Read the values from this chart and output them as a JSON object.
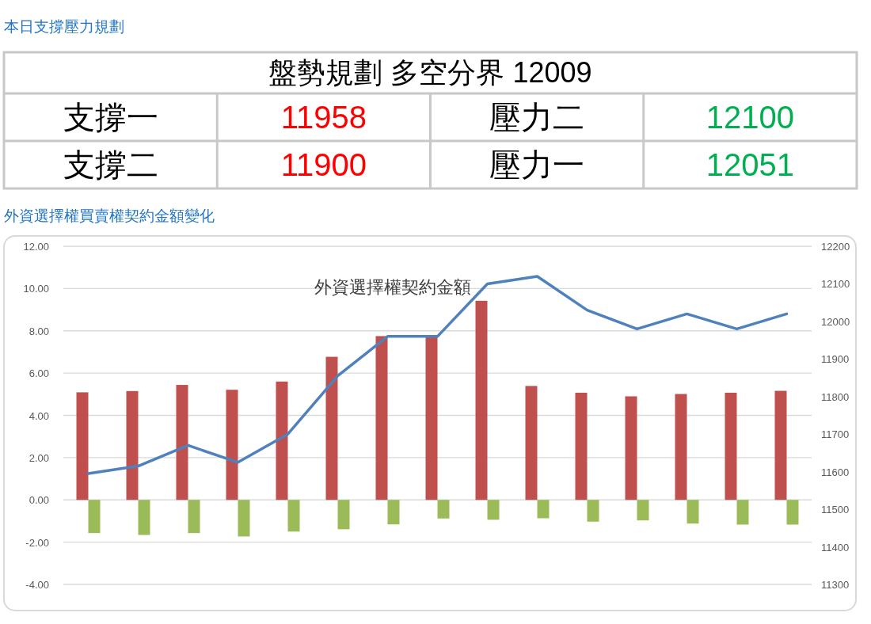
{
  "chart_data": [
    {
      "type": "other",
      "title": "本日支撐壓力規劃",
      "subtitle": "盤勢規劃 多空分界 12009",
      "categories": [
        "支撐一",
        "壓力二",
        "支撐二",
        "壓力一"
      ],
      "values": [
        11958,
        12100,
        11900,
        12051
      ],
      "colors": [
        "#ff0000",
        "#00b050",
        "#ff0000",
        "#00b050"
      ],
      "data_labels": true
    },
    {
      "type": "bar",
      "title": "外資選擇權買賣權契約金額變化",
      "subtitle": "外資選擇權契約金額",
      "categories": [
        null,
        null,
        null,
        null,
        null,
        null,
        null,
        null,
        null,
        null,
        null,
        null,
        null,
        null,
        null
      ],
      "series": [
        {
          "type": "bar",
          "color": "#c0504d",
          "values": [
            5.09,
            5.15,
            5.44,
            5.21,
            5.6,
            6.77,
            7.75,
            7.7,
            9.42,
            5.39,
            5.07,
            4.9,
            5.01,
            5.07,
            5.16
          ]
        },
        {
          "type": "bar",
          "color": "#9bbb59",
          "values": [
            -1.57,
            -1.66,
            -1.57,
            -1.73,
            -1.5,
            -1.39,
            -1.16,
            -0.88,
            -0.94,
            -0.87,
            -1.03,
            -0.97,
            -1.12,
            -1.17,
            -1.17
          ]
        },
        {
          "type": "line",
          "axis": "y2",
          "color": "#4f81bd",
          "values": [
            11595,
            11615,
            11670,
            11625,
            11700,
            11855,
            11960,
            11960,
            12100,
            12120,
            12030,
            11980,
            12020,
            11980,
            12020
          ]
        }
      ],
      "ylim": [
        -4,
        12
      ],
      "yticks": [
        {
          "value": -4,
          "label": "-4.00"
        },
        {
          "value": -2,
          "label": "-2.00"
        },
        {
          "value": 0,
          "label": "0.00"
        },
        {
          "value": 2,
          "label": "2.00"
        },
        {
          "value": 4,
          "label": "4.00"
        },
        {
          "value": 6,
          "label": "6.00"
        },
        {
          "value": 8,
          "label": "8.00"
        },
        {
          "value": 10,
          "label": "10.00"
        },
        {
          "value": 12,
          "label": "12.00"
        }
      ],
      "y2lim": [
        11300,
        12200
      ],
      "y2ticks": [
        11300,
        11400,
        11500,
        11600,
        11700,
        11800,
        11900,
        12000,
        12100,
        12200
      ],
      "grid": "y"
    }
  ]
}
